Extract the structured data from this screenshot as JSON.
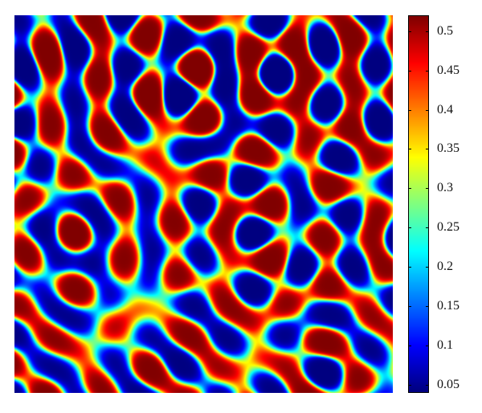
{
  "chart_data": {
    "type": "heatmap",
    "title": "",
    "xlabel": "",
    "ylabel": "",
    "colormap": "jet",
    "value_range": [
      0.04,
      0.52
    ],
    "colorbar": {
      "ticks": [
        {
          "value": 0.5,
          "label": "0.5"
        },
        {
          "value": 0.45,
          "label": "0.45"
        },
        {
          "value": 0.4,
          "label": "0.4"
        },
        {
          "value": 0.35,
          "label": "0.35"
        },
        {
          "value": 0.3,
          "label": "0.3"
        },
        {
          "value": 0.25,
          "label": "0.25"
        },
        {
          "value": 0.2,
          "label": "0.2"
        },
        {
          "value": 0.15,
          "label": "0.15"
        },
        {
          "value": 0.1,
          "label": "0.1"
        },
        {
          "value": 0.05,
          "label": "0.05"
        }
      ]
    },
    "field_description": "Turing-type mixed spot and stripe pattern; low values (blue, ~0.05) form spots and labyrinthine stripes on a high-value (red, ~0.5) background",
    "axes_visible": false
  }
}
